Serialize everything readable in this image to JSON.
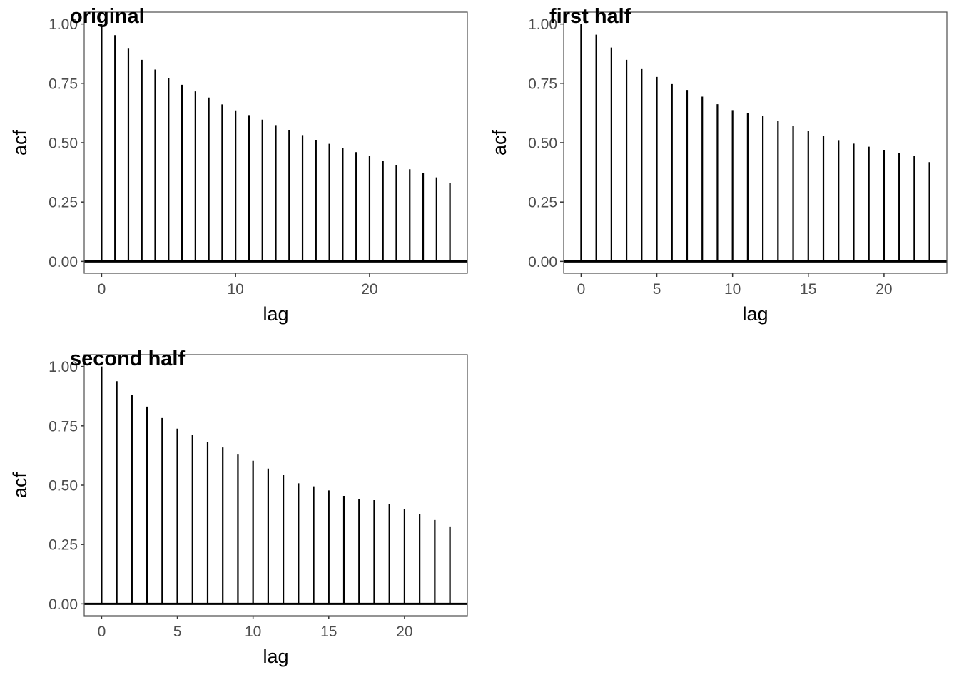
{
  "figure": {
    "background": "#ffffff",
    "bar_color": "#000000",
    "zero_line_color": "#000000",
    "panel_border_color": "#4d4d4d",
    "tick_color": "#333333",
    "tick_label_color": "#4d4d4d",
    "title_color": "#000000"
  },
  "chart_data": [
    {
      "type": "bar",
      "title": "original",
      "xlabel": "lag",
      "ylabel": "acf",
      "ylim": [
        0,
        1
      ],
      "grid": "off",
      "legend": "none",
      "zero_line": 0,
      "lags": [
        0,
        1,
        2,
        3,
        4,
        5,
        6,
        7,
        8,
        9,
        10,
        11,
        12,
        13,
        14,
        15,
        16,
        17,
        18,
        19,
        20,
        21,
        22,
        23,
        24,
        25,
        26
      ],
      "values": [
        1.0,
        0.953,
        0.899,
        0.849,
        0.808,
        0.772,
        0.744,
        0.716,
        0.69,
        0.661,
        0.636,
        0.616,
        0.597,
        0.574,
        0.554,
        0.532,
        0.512,
        0.495,
        0.478,
        0.46,
        0.444,
        0.425,
        0.407,
        0.388,
        0.371,
        0.354,
        0.329
      ],
      "x_ticks": [
        0,
        10,
        20
      ],
      "x_tick_labels": [
        "0",
        "10",
        "20"
      ],
      "y_ticks": [
        0,
        0.25,
        0.5,
        0.75,
        1
      ],
      "y_tick_labels": [
        "0.00",
        "0.25",
        "0.50",
        "0.75",
        "1.00"
      ]
    },
    {
      "type": "bar",
      "title": "first half",
      "xlabel": "lag",
      "ylabel": "acf",
      "ylim": [
        0,
        1
      ],
      "grid": "off",
      "legend": "none",
      "zero_line": 0,
      "lags": [
        0,
        1,
        2,
        3,
        4,
        5,
        6,
        7,
        8,
        9,
        10,
        11,
        12,
        13,
        14,
        15,
        16,
        17,
        18,
        19,
        20,
        21,
        22,
        23
      ],
      "values": [
        1.0,
        0.955,
        0.901,
        0.849,
        0.81,
        0.777,
        0.747,
        0.722,
        0.694,
        0.662,
        0.637,
        0.626,
        0.612,
        0.592,
        0.57,
        0.548,
        0.53,
        0.511,
        0.496,
        0.483,
        0.47,
        0.457,
        0.445,
        0.418
      ],
      "x_ticks": [
        0,
        5,
        10,
        15,
        20
      ],
      "x_tick_labels": [
        "0",
        "5",
        "10",
        "15",
        "20"
      ],
      "y_ticks": [
        0,
        0.25,
        0.5,
        0.75,
        1
      ],
      "y_tick_labels": [
        "0.00",
        "0.25",
        "0.50",
        "0.75",
        "1.00"
      ]
    },
    {
      "type": "bar",
      "title": "second half",
      "xlabel": "lag",
      "ylabel": "acf",
      "ylim": [
        0,
        1
      ],
      "grid": "off",
      "legend": "none",
      "zero_line": 0,
      "lags": [
        0,
        1,
        2,
        3,
        4,
        5,
        6,
        7,
        8,
        9,
        10,
        11,
        12,
        13,
        14,
        15,
        16,
        17,
        18,
        19,
        20,
        21,
        22,
        23
      ],
      "values": [
        1.0,
        0.938,
        0.881,
        0.831,
        0.783,
        0.738,
        0.711,
        0.681,
        0.659,
        0.632,
        0.603,
        0.57,
        0.543,
        0.508,
        0.495,
        0.478,
        0.455,
        0.442,
        0.437,
        0.419,
        0.4,
        0.379,
        0.353,
        0.326
      ],
      "x_ticks": [
        0,
        5,
        10,
        15,
        20
      ],
      "x_tick_labels": [
        "0",
        "5",
        "10",
        "15",
        "20"
      ],
      "y_ticks": [
        0,
        0.25,
        0.5,
        0.75,
        1
      ],
      "y_tick_labels": [
        "0.00",
        "0.25",
        "0.50",
        "0.75",
        "1.00"
      ]
    }
  ]
}
